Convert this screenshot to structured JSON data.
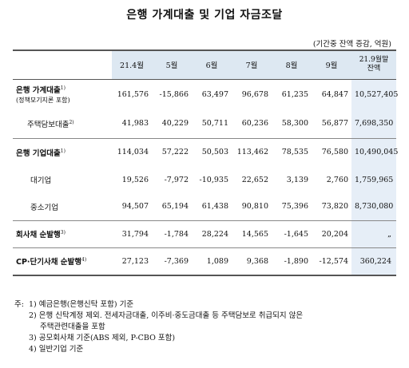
{
  "title": "은행 가계대출 및 기업 자금조달",
  "unit": "(기간중 잔액 증감, 억원)",
  "table": {
    "columns": [
      "21.4월",
      "5월",
      "6월",
      "7월",
      "8월",
      "9월",
      "21.9월말\n잔액"
    ],
    "rows": [
      {
        "label": "은행 가계대출",
        "sup": "1)",
        "sublabel": "(정책모기지론 포함)",
        "values": [
          "161,576",
          "-15,866",
          "63,497",
          "96,678",
          "61,235",
          "64,847",
          "10,527,405"
        ]
      },
      {
        "label": "주택담보대출",
        "sup": "2)",
        "sublabel": "",
        "values": [
          "41,983",
          "40,229",
          "50,711",
          "60,236",
          "58,300",
          "56,877",
          "7,698,350"
        ]
      },
      {
        "label": "은행 기업대출",
        "sup": "1)",
        "sublabel": "",
        "values": [
          "114,034",
          "57,222",
          "50,503",
          "113,462",
          "78,535",
          "76,580",
          "10,490,045"
        ]
      },
      {
        "label": "대기업",
        "sup": "",
        "sublabel": "",
        "values": [
          "19,526",
          "-7,972",
          "-10,935",
          "22,652",
          "3,139",
          "2,760",
          "1,759,965"
        ]
      },
      {
        "label": "중소기업",
        "sup": "",
        "sublabel": "",
        "values": [
          "94,507",
          "65,194",
          "61,438",
          "90,810",
          "75,396",
          "73,820",
          "8,730,080"
        ]
      },
      {
        "label": "회사채 순발행",
        "sup": "3)",
        "sublabel": "",
        "values": [
          "31,794",
          "-1,784",
          "28,224",
          "14,565",
          "-1,645",
          "20,204",
          "„"
        ]
      },
      {
        "label": "CP·단기사채 순발행",
        "sup": "4)",
        "sublabel": "",
        "values": [
          "27,123",
          "-7,369",
          "1,089",
          "9,368",
          "-1,890",
          "-12,574",
          "360,224"
        ]
      }
    ]
  },
  "notes": {
    "prefix": "주:",
    "items": [
      "1) 예금은행(은행신탁 포함) 기준",
      "2) 은행 신탁계정 제외. 전세자금대출, 이주비·중도금대출 등 주택담보로 취급되지 않은",
      "주택관련대출을 포함",
      "3) 공모회사채 기준(ABS 제외, P-CBO 포함)",
      "4) 일반기업 기준"
    ]
  }
}
